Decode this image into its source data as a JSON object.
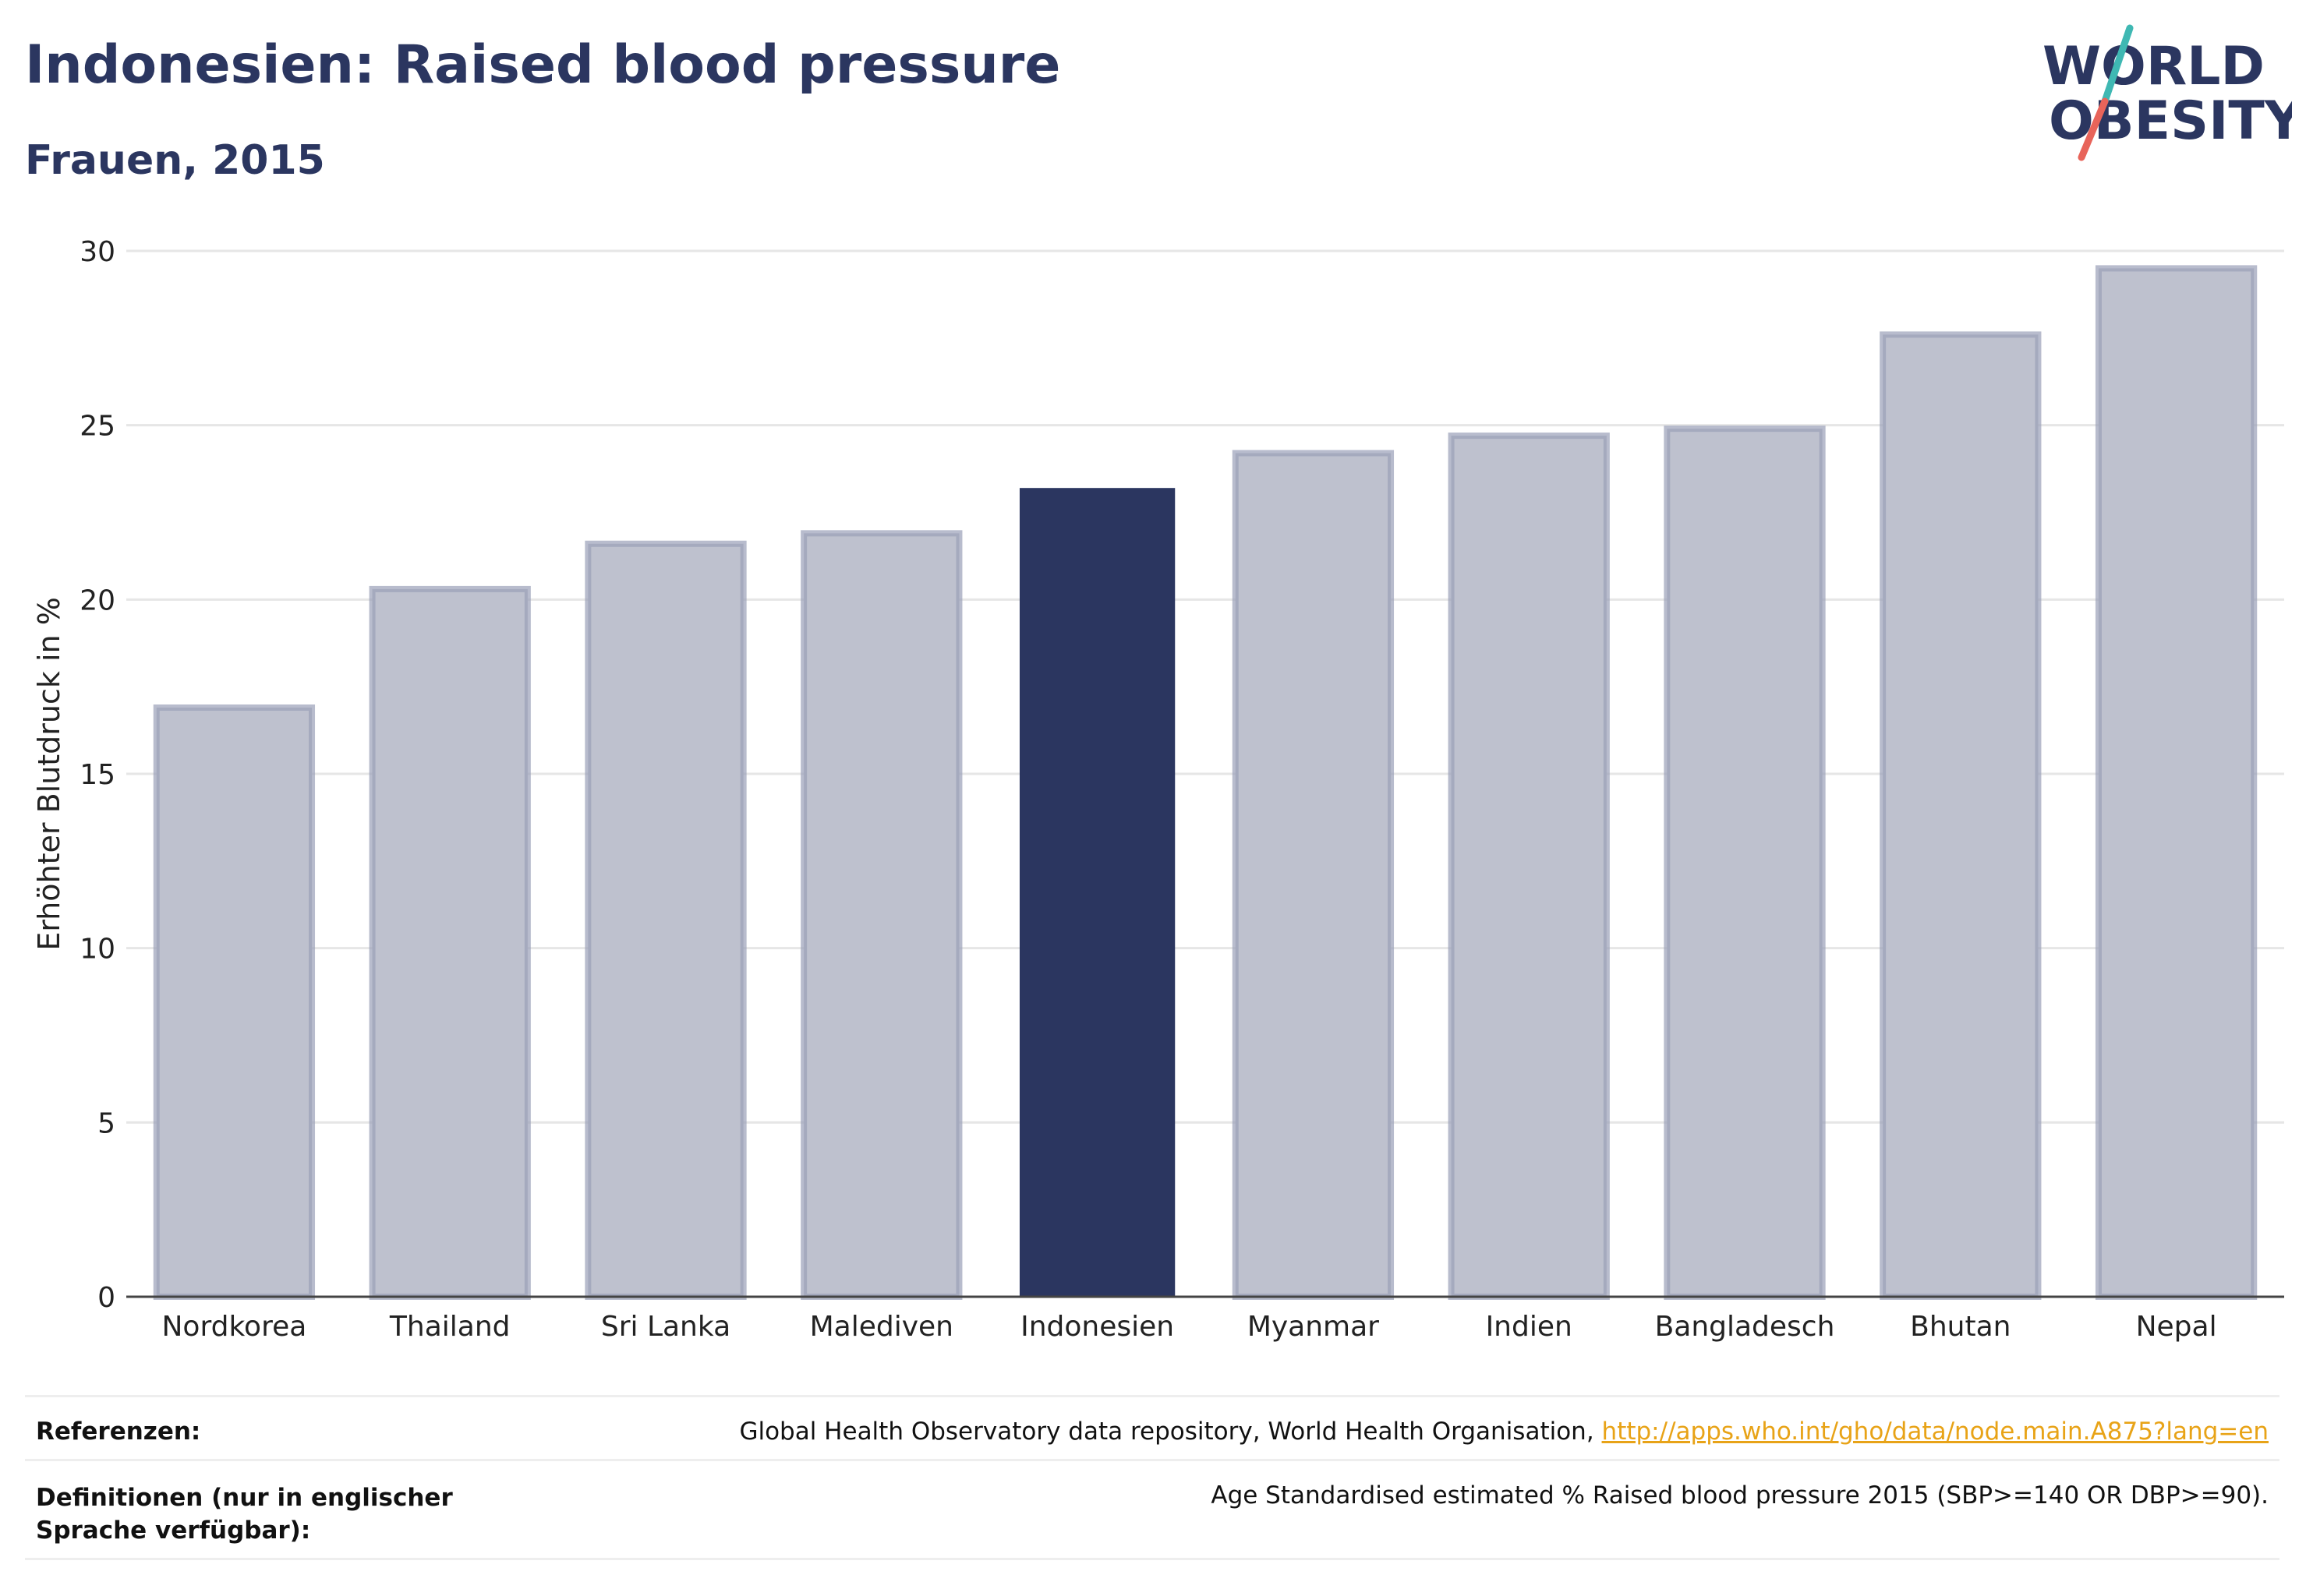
{
  "header": {
    "title": "Indonesien: Raised blood pressure",
    "subtitle": "Frauen, 2015"
  },
  "logo": {
    "line1": "WORLD",
    "line2": "OBESITY",
    "colors": {
      "text": "#2b3660",
      "slash_top": "#3fb8b3",
      "slash_bottom": "#e8645a"
    }
  },
  "chart_data": {
    "type": "bar",
    "title": "Indonesien: Raised blood pressure",
    "subtitle": "Frauen, 2015",
    "xlabel": "",
    "ylabel": "Erhöhter Blutdruck in %",
    "categories": [
      "Nordkorea",
      "Thailand",
      "Sri Lanka",
      "Malediven",
      "Indonesien",
      "Myanmar",
      "Indien",
      "Bangladesch",
      "Bhutan",
      "Nepal"
    ],
    "values": [
      16.9,
      20.3,
      21.6,
      21.9,
      23.2,
      24.2,
      24.7,
      24.9,
      27.6,
      29.5
    ],
    "highlight": "Indonesien",
    "ylim": [
      0,
      30
    ],
    "yticks": [
      0,
      5,
      10,
      15,
      20,
      25,
      30
    ],
    "grid": true,
    "colors": {
      "bar": "#bec1ce",
      "bar_border": "#9aa0b8",
      "highlight": "#2b3660",
      "grid": "#e6e6e6",
      "axis": "#444444"
    }
  },
  "footer": {
    "references_label": "Referenzen:",
    "references_text": "Global Health Observatory data repository, World Health Organisation, ",
    "references_link": "http://apps.who.int/gho/data/node.main.A875?lang=en",
    "definitions_label": "Definitionen (nur in englischer Sprache verfügbar):",
    "definitions_text": "Age Standardised estimated % Raised blood pressure 2015 (SBP>=140 OR DBP>=90)."
  }
}
